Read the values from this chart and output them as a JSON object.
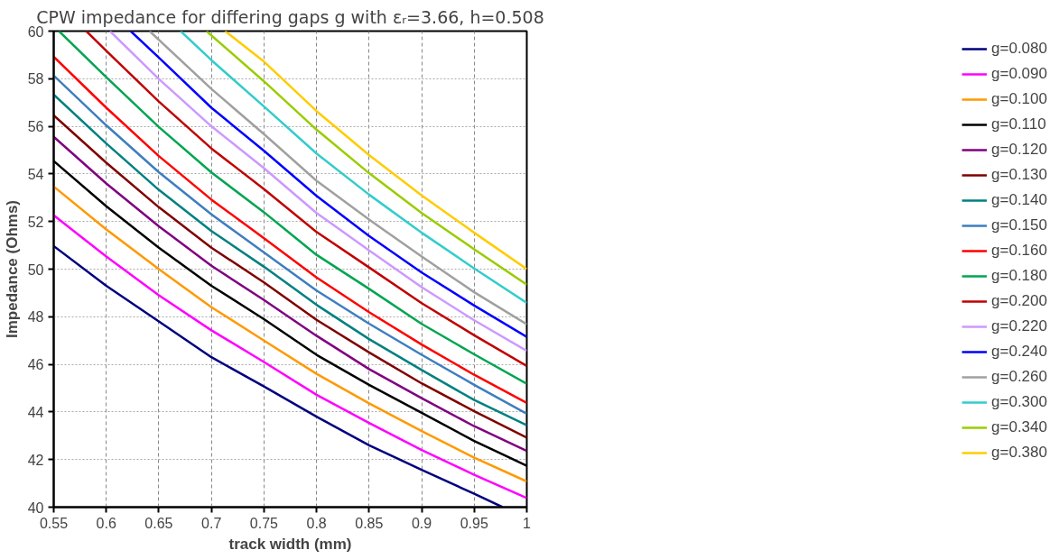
{
  "chart_data": {
    "type": "line",
    "title": "CPW impedance for differing gaps g with εᵣ=3.66, h=0.508",
    "xlabel": "track width (mm)",
    "ylabel": "Impedance (Ohms)",
    "xlim": [
      0.55,
      1
    ],
    "ylim": [
      40,
      60
    ],
    "xticks": [
      0.55,
      0.6,
      0.65,
      0.7,
      0.75,
      0.8,
      0.85,
      0.9,
      0.95,
      1
    ],
    "yticks": [
      40,
      42,
      44,
      46,
      48,
      50,
      52,
      54,
      56,
      58,
      60
    ],
    "grid": true,
    "legend": "right",
    "marker": "none",
    "line_style": "solid",
    "x": [
      0.55,
      0.6,
      0.65,
      0.7,
      0.75,
      0.8,
      0.85,
      0.9,
      0.95,
      1
    ],
    "series": [
      {
        "name": "g=0.080",
        "color": "#000080",
        "x": [
          0.55,
          0.6,
          0.65,
          0.7,
          0.75,
          0.8,
          0.85,
          0.9,
          0.95,
          0.977
        ],
        "values": [
          50.97,
          49.3,
          47.8,
          46.3,
          45.07,
          43.8,
          42.6,
          41.57,
          40.56,
          40.0
        ]
      },
      {
        "name": "g=0.090",
        "color": "#ff00ff",
        "values": [
          52.26,
          50.53,
          48.9,
          47.43,
          46.1,
          44.72,
          43.54,
          42.4,
          41.36,
          40.38
        ]
      },
      {
        "name": "g=0.100",
        "color": "#ff9900",
        "values": [
          53.47,
          51.67,
          50.0,
          48.4,
          47.0,
          45.6,
          44.36,
          43.2,
          42.08,
          41.08
        ]
      },
      {
        "name": "g=0.110",
        "color": "#000000",
        "values": [
          54.54,
          52.64,
          50.9,
          49.3,
          47.9,
          46.4,
          45.14,
          43.96,
          42.78,
          41.74
        ]
      },
      {
        "name": "g=0.120",
        "color": "#800080",
        "values": [
          55.56,
          53.6,
          51.8,
          50.14,
          48.7,
          47.2,
          45.8,
          44.58,
          43.4,
          42.36
        ]
      },
      {
        "name": "g=0.130",
        "color": "#800000",
        "values": [
          56.46,
          54.47,
          52.6,
          50.9,
          49.44,
          47.87,
          46.5,
          45.2,
          44.03,
          42.92
        ]
      },
      {
        "name": "g=0.140",
        "color": "#008080",
        "values": [
          57.33,
          55.28,
          53.33,
          51.6,
          50.1,
          48.5,
          47.06,
          45.76,
          44.5,
          43.44
        ]
      },
      {
        "name": "g=0.150",
        "color": "#3d7ebf",
        "values": [
          58.13,
          56.04,
          54.07,
          52.3,
          50.7,
          49.1,
          47.71,
          46.4,
          45.14,
          43.92
        ]
      },
      {
        "name": "g=0.160",
        "color": "#ff0000",
        "values": [
          58.92,
          56.78,
          54.75,
          52.92,
          51.3,
          49.65,
          48.19,
          46.83,
          45.56,
          44.38
        ]
      },
      {
        "name": "g=0.180",
        "color": "#00a550",
        "x": [
          0.555,
          0.6,
          0.65,
          0.7,
          0.75,
          0.8,
          0.85,
          0.9,
          0.95,
          1
        ],
        "values": [
          60.0,
          58.06,
          55.97,
          54.06,
          52.39,
          50.6,
          49.17,
          47.7,
          46.42,
          45.18
        ]
      },
      {
        "name": "g=0.200",
        "color": "#c00000",
        "x": [
          0.581,
          0.6,
          0.65,
          0.7,
          0.75,
          0.8,
          0.85,
          0.9,
          0.95,
          1
        ],
        "values": [
          60.0,
          59.17,
          57.04,
          55.07,
          53.36,
          51.56,
          50.07,
          48.57,
          47.22,
          45.93
        ]
      },
      {
        "name": "g=0.220",
        "color": "#cc99ff",
        "x": [
          0.6035,
          0.65,
          0.7,
          0.75,
          0.8,
          0.85,
          0.9,
          0.95,
          1
        ],
        "values": [
          60.0,
          57.99,
          56.0,
          54.24,
          52.36,
          50.79,
          49.24,
          47.85,
          46.57
        ]
      },
      {
        "name": "g=0.240",
        "color": "#0000ff",
        "x": [
          0.6232,
          0.65,
          0.7,
          0.75,
          0.8,
          0.85,
          0.9,
          0.95,
          1
        ],
        "values": [
          60.0,
          58.89,
          56.78,
          54.97,
          53.08,
          51.39,
          49.86,
          48.47,
          47.15
        ]
      },
      {
        "name": "g=0.260",
        "color": "#a0a0a0",
        "x": [
          0.6412,
          0.7,
          0.75,
          0.8,
          0.85,
          0.9,
          0.95,
          1
        ],
        "values": [
          60.0,
          57.57,
          55.67,
          53.71,
          52.08,
          50.53,
          49.03,
          47.68
        ]
      },
      {
        "name": "g=0.300",
        "color": "#33cccc",
        "x": [
          0.6707,
          0.7,
          0.75,
          0.8,
          0.85,
          0.9,
          0.95,
          1
        ],
        "values": [
          60.0,
          58.78,
          56.83,
          54.86,
          53.13,
          51.53,
          50.03,
          48.58
        ]
      },
      {
        "name": "g=0.340",
        "color": "#99cc00",
        "x": [
          0.6953,
          0.75,
          0.8,
          0.85,
          0.9,
          0.95,
          1
        ],
        "values": [
          60.0,
          57.89,
          55.86,
          54.03,
          52.36,
          50.83,
          49.35
        ]
      },
      {
        "name": "g=0.380",
        "color": "#ffcc00",
        "x": [
          0.713,
          0.75,
          0.8,
          0.85,
          0.9,
          0.95,
          1
        ],
        "values": [
          60.0,
          58.72,
          56.64,
          54.79,
          53.1,
          51.53,
          50.0
        ]
      }
    ]
  }
}
